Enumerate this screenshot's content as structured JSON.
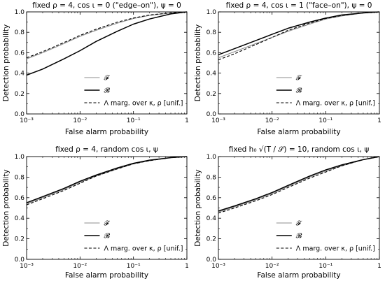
{
  "chart_data": [
    {
      "type": "line",
      "title": "fixed ρ = 4, cos ι = 0 (\"edge–on\"), ψ = 0",
      "xlabel": "False alarm probability",
      "ylabel": "Detection probability",
      "xscale": "log",
      "xlim": [
        0.001,
        1
      ],
      "ylim": [
        0.0,
        1.0
      ],
      "xticks": [
        "10⁻³",
        "10⁻²",
        "10⁻¹",
        "1"
      ],
      "yticks": [
        "0.0",
        "0.2",
        "0.4",
        "0.6",
        "0.8",
        "1.0"
      ],
      "legend_position": "bottom-right",
      "series": [
        {
          "name": "𝓕",
          "style": "solid-gray",
          "x": [
            0.001,
            0.002,
            0.005,
            0.01,
            0.02,
            0.05,
            0.1,
            0.2,
            0.5,
            1
          ],
          "y": [
            0.54,
            0.6,
            0.69,
            0.76,
            0.82,
            0.89,
            0.935,
            0.965,
            0.99,
            1.0
          ]
        },
        {
          "name": "𝓑",
          "style": "solid-black",
          "x": [
            0.001,
            0.002,
            0.005,
            0.01,
            0.02,
            0.05,
            0.1,
            0.2,
            0.5,
            1
          ],
          "y": [
            0.38,
            0.44,
            0.54,
            0.62,
            0.71,
            0.81,
            0.88,
            0.93,
            0.98,
            1.0
          ]
        },
        {
          "name": "Λ marg. over κ, ρ [unif.]",
          "style": "dashed-black",
          "x": [
            0.001,
            0.002,
            0.005,
            0.01,
            0.02,
            0.05,
            0.1,
            0.2,
            0.5,
            1
          ],
          "y": [
            0.55,
            0.61,
            0.7,
            0.77,
            0.83,
            0.9,
            0.94,
            0.97,
            0.99,
            1.0
          ]
        }
      ]
    },
    {
      "type": "line",
      "title": "fixed ρ = 4, cos ι = 1 (\"face–on\"), ψ = 0",
      "xlabel": "False alarm probability",
      "ylabel": "Detection probability",
      "xscale": "log",
      "xlim": [
        0.001,
        1
      ],
      "ylim": [
        0.0,
        1.0
      ],
      "xticks": [
        "10⁻³",
        "10⁻²",
        "10⁻¹",
        "1"
      ],
      "yticks": [
        "0.0",
        "0.2",
        "0.4",
        "0.6",
        "0.8",
        "1.0"
      ],
      "legend_position": "bottom-right",
      "series": [
        {
          "name": "𝓕",
          "style": "solid-gray",
          "x": [
            0.001,
            0.002,
            0.005,
            0.01,
            0.02,
            0.05,
            0.1,
            0.2,
            0.5,
            1
          ],
          "y": [
            0.55,
            0.61,
            0.69,
            0.75,
            0.81,
            0.88,
            0.93,
            0.96,
            0.99,
            1.0
          ]
        },
        {
          "name": "𝓑",
          "style": "solid-black",
          "x": [
            0.001,
            0.002,
            0.005,
            0.01,
            0.02,
            0.05,
            0.1,
            0.2,
            0.5,
            1
          ],
          "y": [
            0.58,
            0.64,
            0.72,
            0.78,
            0.84,
            0.9,
            0.94,
            0.97,
            0.99,
            1.0
          ]
        },
        {
          "name": "Λ marg. over κ, ρ [unif.]",
          "style": "dashed-black",
          "x": [
            0.001,
            0.002,
            0.005,
            0.01,
            0.02,
            0.05,
            0.1,
            0.2,
            0.5,
            1
          ],
          "y": [
            0.53,
            0.59,
            0.68,
            0.75,
            0.82,
            0.89,
            0.935,
            0.965,
            0.99,
            1.0
          ]
        }
      ]
    },
    {
      "type": "line",
      "title": "fixed ρ = 4, random cos ι, ψ",
      "xlabel": "False alarm probability",
      "ylabel": "Detection probability",
      "xscale": "log",
      "xlim": [
        0.001,
        1
      ],
      "ylim": [
        0.0,
        1.0
      ],
      "xticks": [
        "10⁻³",
        "10⁻²",
        "10⁻¹",
        "1"
      ],
      "yticks": [
        "0.0",
        "0.2",
        "0.4",
        "0.6",
        "0.8",
        "1.0"
      ],
      "legend_position": "bottom-right",
      "series": [
        {
          "name": "𝓕",
          "style": "solid-gray",
          "x": [
            0.001,
            0.002,
            0.005,
            0.01,
            0.02,
            0.05,
            0.1,
            0.2,
            0.5,
            1
          ],
          "y": [
            0.54,
            0.6,
            0.68,
            0.75,
            0.81,
            0.88,
            0.93,
            0.96,
            0.99,
            1.0
          ]
        },
        {
          "name": "𝓑",
          "style": "solid-black",
          "x": [
            0.001,
            0.002,
            0.005,
            0.01,
            0.02,
            0.05,
            0.1,
            0.2,
            0.5,
            1
          ],
          "y": [
            0.55,
            0.61,
            0.69,
            0.76,
            0.82,
            0.89,
            0.935,
            0.965,
            0.99,
            1.0
          ]
        },
        {
          "name": "Λ marg. over κ, ρ [unif.]",
          "style": "dashed-black",
          "x": [
            0.001,
            0.002,
            0.005,
            0.01,
            0.02,
            0.05,
            0.1,
            0.2,
            0.5,
            1
          ],
          "y": [
            0.53,
            0.59,
            0.67,
            0.74,
            0.81,
            0.88,
            0.93,
            0.96,
            0.99,
            1.0
          ]
        }
      ]
    },
    {
      "type": "line",
      "title": "fixed h₀ √(T / 𝒮) = 10, random cos ι, ψ",
      "xlabel": "False alarm probability",
      "ylabel": "Detection probability",
      "xscale": "log",
      "xlim": [
        0.001,
        1
      ],
      "ylim": [
        0.0,
        1.0
      ],
      "xticks": [
        "10⁻³",
        "10⁻²",
        "10⁻¹",
        "1"
      ],
      "yticks": [
        "0.0",
        "0.2",
        "0.4",
        "0.6",
        "0.8",
        "1.0"
      ],
      "legend_position": "bottom-right",
      "series": [
        {
          "name": "𝓕",
          "style": "solid-gray",
          "x": [
            0.001,
            0.002,
            0.005,
            0.01,
            0.02,
            0.05,
            0.1,
            0.2,
            0.5,
            1
          ],
          "y": [
            0.46,
            0.51,
            0.58,
            0.64,
            0.71,
            0.8,
            0.86,
            0.91,
            0.97,
            1.0
          ]
        },
        {
          "name": "𝓑",
          "style": "solid-black",
          "x": [
            0.001,
            0.002,
            0.005,
            0.01,
            0.02,
            0.05,
            0.1,
            0.2,
            0.5,
            1
          ],
          "y": [
            0.47,
            0.52,
            0.59,
            0.65,
            0.72,
            0.81,
            0.87,
            0.92,
            0.97,
            1.0
          ]
        },
        {
          "name": "Λ marg. over κ, ρ [unif.]",
          "style": "dashed-black",
          "x": [
            0.001,
            0.002,
            0.005,
            0.01,
            0.02,
            0.05,
            0.1,
            0.2,
            0.5,
            1
          ],
          "y": [
            0.45,
            0.5,
            0.57,
            0.63,
            0.7,
            0.79,
            0.85,
            0.91,
            0.97,
            1.0
          ]
        }
      ]
    }
  ]
}
